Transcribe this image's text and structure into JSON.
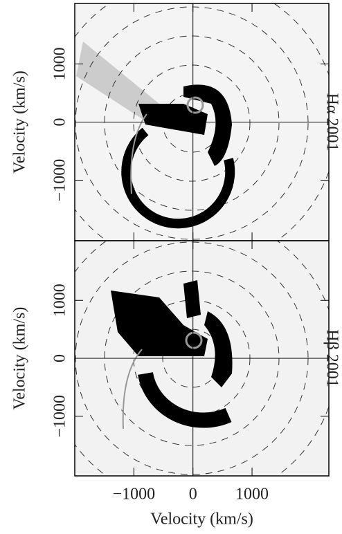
{
  "chart_data": [
    {
      "type": "image",
      "label": "Hα 2001",
      "ylabel": "Velocity (km/s)",
      "xlim": [
        -2000,
        2300
      ],
      "xticks": [
        -1000,
        0,
        1000
      ],
      "ylim": [
        -2040,
        2040
      ],
      "yticks": [
        {
          "value": -1000,
          "label": "−1000"
        },
        0,
        1000
      ]
    },
    {
      "type": "image",
      "label": "Hβ 2001",
      "ylabel": "Velocity (km/s)",
      "xlabel": "Velocity (km/s)",
      "xlim": [
        -2000,
        2300
      ],
      "xticks": [
        {
          "value": -1000,
          "label": "−1000"
        },
        0,
        1000
      ],
      "ylim": [
        -2030,
        2030
      ],
      "yticks": [
        {
          "value": -1000,
          "label": "−1000"
        },
        0,
        1000
      ]
    }
  ]
}
